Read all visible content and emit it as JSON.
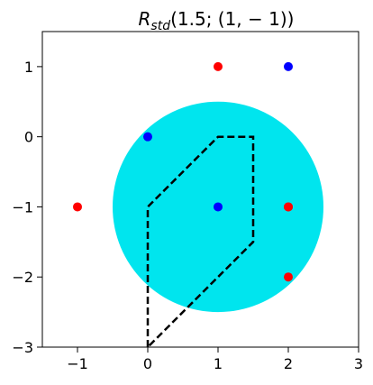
{
  "chart_data": {
    "type": "scatter",
    "title_main": "R",
    "title_sub": "std",
    "title_rest": "(1.5; (1,  − 1))",
    "xlim": [
      -1.5,
      3
    ],
    "ylim": [
      -3,
      1.5
    ],
    "xticks": [
      -1,
      0,
      1,
      2,
      3
    ],
    "yticks": [
      1,
      0,
      -1,
      -2,
      -3
    ],
    "xtick_labels": [
      "−1",
      "0",
      "1",
      "2",
      "3"
    ],
    "ytick_labels": [
      "1",
      "0",
      "−1",
      "−2",
      "−3"
    ],
    "grid": false,
    "circle": {
      "center": [
        1,
        -1
      ],
      "radius": 1.5,
      "color": "#00e5ee"
    },
    "polygon": {
      "points": [
        [
          0,
          -3
        ],
        [
          0,
          -1
        ],
        [
          1,
          0
        ],
        [
          1.5,
          0
        ],
        [
          1.5,
          -1.5
        ],
        [
          0,
          -3
        ]
      ],
      "style": "dashed",
      "color": "#000000"
    },
    "series": [
      {
        "color": "#ff0000",
        "x": [
          1,
          2,
          -1,
          2,
          2
        ],
        "y": [
          1,
          -1,
          -1,
          -2,
          -1
        ]
      },
      {
        "color": "#0000ff",
        "x": [
          2,
          0,
          1
        ],
        "y": [
          1,
          0,
          -1
        ]
      }
    ]
  }
}
